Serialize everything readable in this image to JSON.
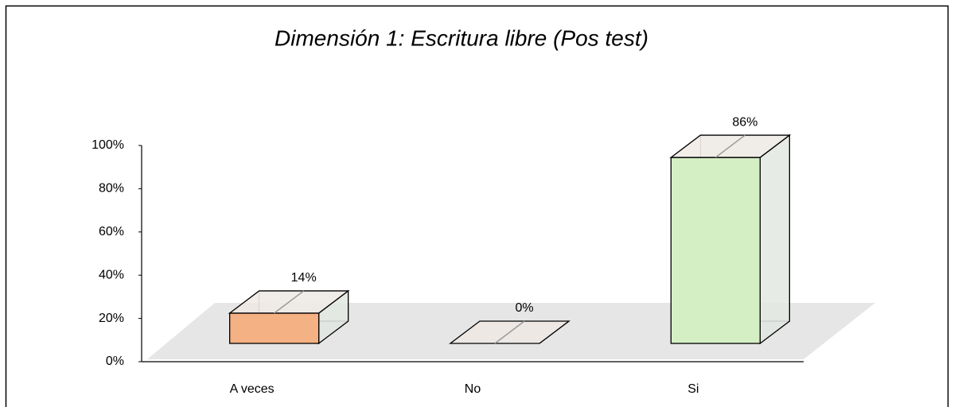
{
  "chart_data": {
    "type": "bar3d",
    "title": "Dimensión 1: Escritura libre (Pos test)",
    "categories": [
      "A veces",
      "No",
      "Si"
    ],
    "values": [
      14,
      0,
      86
    ],
    "value_labels": [
      "14%",
      "0%",
      "86%"
    ],
    "colors": [
      "#f4b183",
      "#e7e1dc",
      "#d5efc5"
    ],
    "ylim": [
      0,
      100
    ],
    "yticks": [
      {
        "value": 0,
        "label": "0%"
      },
      {
        "value": 20,
        "label": "20%"
      },
      {
        "value": 40,
        "label": "40%"
      },
      {
        "value": 60,
        "label": "60%"
      },
      {
        "value": 80,
        "label": "80%"
      },
      {
        "value": 100,
        "label": "100%"
      }
    ]
  }
}
